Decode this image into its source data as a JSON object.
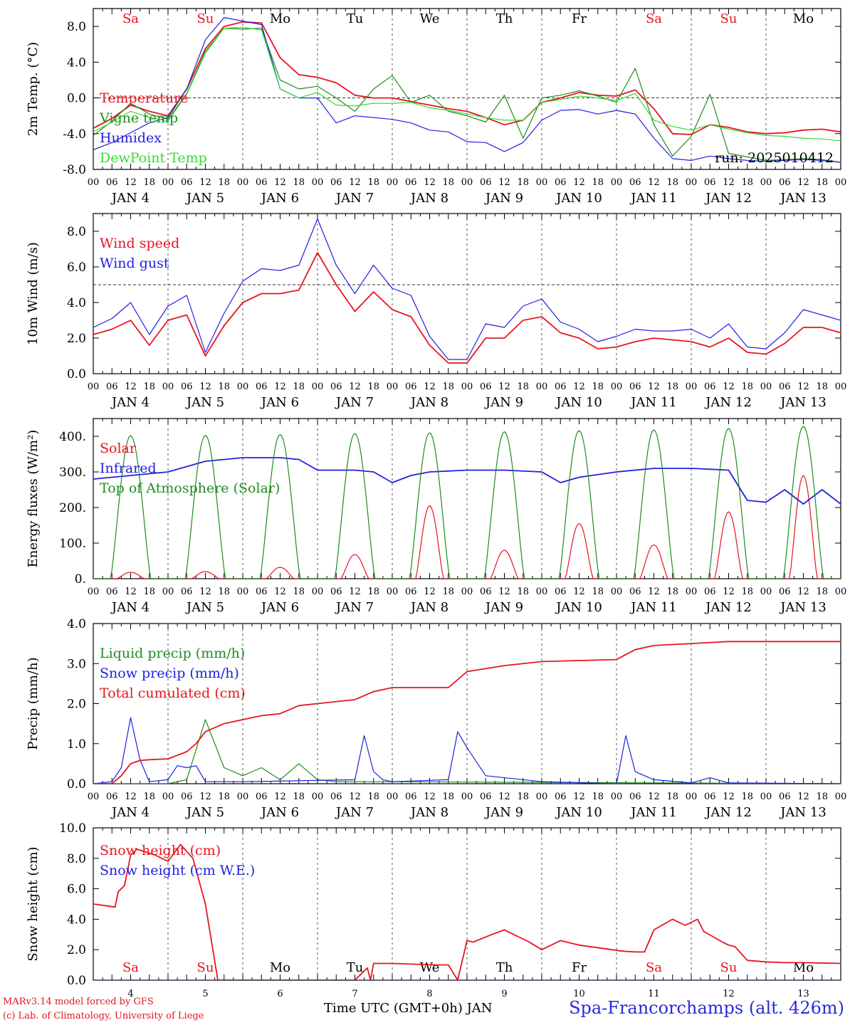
{
  "footer": {
    "credit_line1": "MARv3.14 model forced by GFS",
    "credit_line2": "(c) Lab. of Climatology, University of Liege",
    "x_title": "Time UTC (GMT+0h) JAN",
    "station": "Spa-Francorchamps (alt. 426m)"
  },
  "colors": {
    "red": "#e8141e",
    "blue": "#2020e0",
    "green": "#1e8c1e",
    "lightgreen": "#33dd33",
    "weekend": "#e8141e"
  },
  "axis_common": {
    "hour_ticks": [
      "00",
      "06",
      "12",
      "18"
    ],
    "date_labels": [
      "JAN  4",
      "JAN  5",
      "JAN  6",
      "JAN  7",
      "JAN  8",
      "JAN  9",
      "JAN 10",
      "JAN 11",
      "JAN 12",
      "JAN 13"
    ],
    "weekdays": [
      "Sa",
      "Su",
      "Mo",
      "Tu",
      "We",
      "Th",
      "Fr",
      "Sa",
      "Su",
      "Mo"
    ],
    "weekend_flags": [
      true,
      true,
      false,
      false,
      false,
      false,
      false,
      true,
      true,
      false
    ],
    "day_numbers": [
      "4",
      "5",
      "6",
      "7",
      "8",
      "9",
      "10",
      "11",
      "12",
      "13"
    ]
  },
  "chart_data": [
    {
      "type": "line",
      "ylabel": "2m Temp. (°C)",
      "ylim": [
        -8,
        10
      ],
      "yticks": [
        "-8.0",
        "-4.0",
        "0.0",
        "4.0",
        "8.0"
      ],
      "ref_line": 0,
      "annotation": "run: 2025010412",
      "x_hours": [
        0,
        6,
        12,
        18,
        24,
        30,
        36,
        42,
        48,
        54,
        60,
        66,
        72,
        78,
        84,
        90,
        96,
        102,
        108,
        114,
        120,
        126,
        132,
        138,
        144,
        150,
        156,
        162,
        168,
        174,
        180,
        186,
        192,
        198,
        204,
        210,
        216,
        222,
        228,
        234,
        240
      ],
      "series": [
        {
          "name": "Temperature",
          "color": "#e8141e",
          "values": [
            -3.4,
            -2.3,
            -0.8,
            -1.5,
            -2.0,
            1.0,
            5.5,
            8.0,
            8.5,
            8.4,
            4.5,
            2.6,
            2.3,
            1.7,
            0.3,
            0.0,
            0.0,
            -0.4,
            -0.8,
            -1.2,
            -1.5,
            -2.2,
            -3.0,
            -2.5,
            -0.5,
            0.0,
            0.6,
            0.3,
            0.2,
            0.9,
            -1.2,
            -4.0,
            -4.1,
            -3.0,
            -3.3,
            -3.8,
            -4.0,
            -3.9,
            -3.6,
            -3.5,
            -3.8
          ]
        },
        {
          "name": "Vigne temp",
          "color": "#1e8c1e",
          "values": [
            -4.2,
            -2.6,
            -0.6,
            -1.8,
            -2.4,
            0.5,
            5.2,
            7.8,
            7.7,
            7.8,
            2.0,
            1.0,
            1.3,
            0.0,
            -1.5,
            1.0,
            2.5,
            -0.5,
            0.3,
            -1.5,
            -2.0,
            -2.7,
            0.3,
            -4.5,
            0.0,
            0.3,
            0.8,
            0.2,
            -0.5,
            3.3,
            -3.0,
            -6.5,
            -4.3,
            0.4,
            -6.2,
            -6.6,
            -7.0,
            -6.9,
            -6.8,
            -6.9,
            -7.2
          ]
        },
        {
          "name": "Humidex",
          "color": "#2020e0",
          "values": [
            -5.8,
            -5.0,
            -3.9,
            -2.8,
            -2.2,
            1.0,
            6.5,
            9.0,
            8.6,
            8.2,
            1.0,
            0.0,
            0.0,
            -2.8,
            -2.0,
            -2.2,
            -2.4,
            -2.8,
            -3.6,
            -3.8,
            -4.9,
            -5.0,
            -6.0,
            -5.0,
            -2.5,
            -1.4,
            -1.3,
            -1.8,
            -1.4,
            -1.8,
            -4.5,
            -6.8,
            -7.0,
            -6.5,
            -6.8,
            -7.0,
            -7.1,
            -7.0,
            -6.9,
            -7.0,
            -7.2
          ]
        },
        {
          "name": "DewPoint Temp",
          "color": "#33dd33",
          "values": [
            -3.8,
            -2.7,
            -1.5,
            -2.2,
            -2.6,
            0.4,
            5.0,
            7.8,
            7.9,
            7.6,
            1.0,
            0.0,
            0.6,
            -0.8,
            -0.9,
            -0.6,
            -0.6,
            -0.5,
            -1.1,
            -1.4,
            -1.8,
            -2.2,
            -2.5,
            -2.5,
            -0.5,
            -0.2,
            0.2,
            0.0,
            -0.3,
            0.5,
            -2.5,
            -3.2,
            -3.6,
            -3.0,
            -3.5,
            -3.9,
            -4.2,
            -4.3,
            -4.5,
            -4.6,
            -4.8
          ]
        }
      ]
    },
    {
      "type": "line",
      "ylabel": "10m Wind (m/s)",
      "ylim": [
        0,
        9
      ],
      "yticks": [
        "0.0",
        "2.0",
        "4.0",
        "6.0",
        "8.0"
      ],
      "ref_line": 5,
      "x_hours": [
        0,
        6,
        12,
        18,
        24,
        30,
        36,
        42,
        48,
        54,
        60,
        66,
        72,
        78,
        84,
        90,
        96,
        102,
        108,
        114,
        120,
        126,
        132,
        138,
        144,
        150,
        156,
        162,
        168,
        174,
        180,
        186,
        192,
        198,
        204,
        210,
        216,
        222,
        228,
        234,
        240
      ],
      "series": [
        {
          "name": "Wind speed",
          "color": "#e8141e",
          "values": [
            2.2,
            2.5,
            3.0,
            1.6,
            3.0,
            3.3,
            1.0,
            2.7,
            4.0,
            4.5,
            4.5,
            4.7,
            6.8,
            5.0,
            3.5,
            4.6,
            3.6,
            3.2,
            1.6,
            0.6,
            0.6,
            2.0,
            2.0,
            3.0,
            3.2,
            2.3,
            2.0,
            1.4,
            1.5,
            1.8,
            2.0,
            1.9,
            1.8,
            1.5,
            2.0,
            1.2,
            1.1,
            1.7,
            2.6,
            2.6,
            2.3
          ]
        },
        {
          "name": "Wind gust",
          "color": "#2020e0",
          "values": [
            2.6,
            3.1,
            4.0,
            2.2,
            3.8,
            4.4,
            1.2,
            3.4,
            5.2,
            5.9,
            5.8,
            6.1,
            8.7,
            6.1,
            4.5,
            6.1,
            4.8,
            4.4,
            2.1,
            0.8,
            0.8,
            2.8,
            2.6,
            3.8,
            4.2,
            2.9,
            2.5,
            1.8,
            2.1,
            2.5,
            2.4,
            2.4,
            2.5,
            2.0,
            2.8,
            1.5,
            1.4,
            2.3,
            3.6,
            3.3,
            3.0
          ]
        }
      ]
    },
    {
      "type": "line",
      "ylabel": "Energy fluxes (W/m²)",
      "ylim": [
        0,
        450
      ],
      "yticks": [
        "0.",
        "100.",
        "200.",
        "300.",
        "400."
      ],
      "day_peak_hours": [
        12,
        36,
        60,
        84,
        108,
        132,
        156,
        180,
        204,
        228
      ],
      "series": [
        {
          "name": "Solar",
          "color": "#e8141e",
          "peaks": [
            18,
            20,
            32,
            68,
            205,
            80,
            155,
            95,
            188,
            290
          ]
        },
        {
          "name": "Infrared",
          "color": "#2020e0",
          "x_hours": [
            0,
            12,
            24,
            36,
            48,
            60,
            66,
            72,
            84,
            90,
            96,
            102,
            108,
            120,
            132,
            144,
            150,
            156,
            168,
            180,
            192,
            204,
            210,
            216,
            222,
            228,
            234,
            240
          ],
          "values": [
            280,
            290,
            300,
            330,
            340,
            340,
            335,
            305,
            305,
            300,
            270,
            290,
            300,
            305,
            305,
            300,
            270,
            285,
            300,
            310,
            310,
            305,
            220,
            215,
            250,
            210,
            250,
            210
          ]
        },
        {
          "name": "Top of Atmosphere (Solar)",
          "color": "#1e8c1e",
          "peaks": [
            402,
            403,
            405,
            408,
            410,
            413,
            416,
            418,
            422,
            428
          ]
        }
      ]
    },
    {
      "type": "line",
      "ylabel": "Precip (mm/h)",
      "ylim": [
        0,
        4
      ],
      "yticks": [
        "0.0",
        "1.0",
        "2.0",
        "3.0",
        "4.0"
      ],
      "series": [
        {
          "name": "Liquid precip (mm/h)",
          "color": "#1e8c1e",
          "x_hours": [
            0,
            24,
            30,
            36,
            42,
            48,
            54,
            60,
            66,
            72,
            78,
            96,
            240
          ],
          "values": [
            0,
            0,
            0.1,
            1.6,
            0.4,
            0.2,
            0.4,
            0.1,
            0.5,
            0.1,
            0.05,
            0.05,
            0
          ]
        },
        {
          "name": "Snow precip (mm/h)",
          "color": "#2020e0",
          "x_hours": [
            0,
            6,
            9,
            12,
            15,
            18,
            24,
            27,
            30,
            33,
            36,
            48,
            84,
            87,
            90,
            93,
            96,
            114,
            117,
            120,
            126,
            144,
            168,
            171,
            174,
            180,
            192,
            198,
            204,
            240
          ],
          "values": [
            0,
            0.05,
            0.4,
            1.65,
            0.6,
            0.05,
            0.1,
            0.45,
            0.4,
            0.45,
            0.05,
            0.05,
            0.1,
            1.2,
            0.3,
            0.1,
            0.05,
            0.1,
            1.3,
            0.9,
            0.2,
            0.05,
            0,
            1.2,
            0.3,
            0.1,
            0.02,
            0.15,
            0.02,
            0
          ]
        },
        {
          "name": "Total cumulated (cm)",
          "color": "#e8141e",
          "x_hours": [
            0,
            6,
            9,
            12,
            15,
            18,
            24,
            30,
            33,
            36,
            42,
            48,
            54,
            60,
            66,
            72,
            84,
            90,
            96,
            114,
            120,
            132,
            144,
            168,
            174,
            180,
            192,
            204,
            216,
            228,
            240
          ],
          "values": [
            0,
            0,
            0.2,
            0.5,
            0.58,
            0.6,
            0.62,
            0.8,
            1.0,
            1.3,
            1.5,
            1.6,
            1.7,
            1.75,
            1.95,
            2.0,
            2.1,
            2.3,
            2.4,
            2.4,
            2.8,
            2.95,
            3.05,
            3.1,
            3.35,
            3.45,
            3.5,
            3.55,
            3.55,
            3.55,
            3.55
          ]
        }
      ]
    },
    {
      "type": "line",
      "ylabel": "Snow height (cm)",
      "ylim": [
        0,
        10
      ],
      "yticks": [
        "0.0",
        "2.0",
        "4.0",
        "6.0",
        "8.0",
        "10.0"
      ],
      "series": [
        {
          "name": "Snow height (cm)",
          "color": "#e8141e",
          "x_hours": [
            0,
            7,
            8,
            10,
            12,
            14,
            20,
            24,
            28,
            32,
            36,
            40,
            44,
            54,
            60,
            72,
            84,
            88,
            89,
            90,
            96,
            110,
            114,
            117,
            120,
            122,
            128,
            132,
            140,
            144,
            150,
            156,
            170,
            174,
            177,
            180,
            186,
            190,
            194,
            196,
            202,
            204,
            206,
            210,
            216,
            222,
            228,
            240
          ],
          "values": [
            5.0,
            4.8,
            5.8,
            6.2,
            8.2,
            8.6,
            8.2,
            7.8,
            8.9,
            8.0,
            5.0,
            0,
            0,
            0,
            0,
            0,
            0,
            0.8,
            0,
            1.1,
            1.1,
            1.0,
            1.0,
            0,
            2.6,
            2.5,
            3.0,
            3.3,
            2.5,
            2.0,
            2.6,
            2.3,
            1.9,
            1.85,
            1.85,
            3.3,
            4.0,
            3.6,
            4.0,
            3.2,
            2.5,
            2.3,
            2.2,
            1.3,
            1.2,
            1.15,
            1.15,
            1.1
          ]
        },
        {
          "name": "Snow height (cm W.E.)",
          "color": "#2020e0",
          "x_hours": [
            0,
            240
          ],
          "values": [
            0,
            0
          ]
        }
      ]
    }
  ]
}
